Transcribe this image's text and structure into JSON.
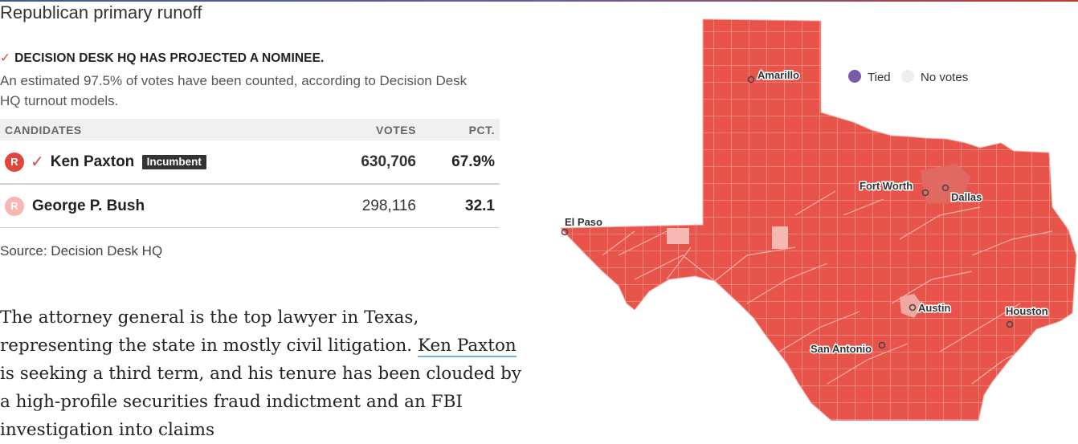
{
  "race": {
    "title": "Republican primary runoff",
    "projection": "DECISION DESK HQ HAS PROJECTED A NOMINEE.",
    "counted_text": "An estimated 97.5% of votes have been counted, according to Decision Desk HQ turnout models.",
    "pct_counted": 97.5
  },
  "table": {
    "headers": {
      "candidates": "CANDIDATES",
      "votes": "VOTES",
      "pct": "PCT."
    },
    "rows": [
      {
        "party": "R",
        "winner": true,
        "name": "Ken Paxton",
        "badge": "Incumbent",
        "votes": "630,706",
        "pct": "67.9%"
      },
      {
        "party": "R",
        "winner": false,
        "name": "George P. Bush",
        "badge": "",
        "votes": "298,116",
        "pct": "32.1"
      }
    ]
  },
  "source": "Source: Decision Desk HQ",
  "article": {
    "before_link": "The attorney general is the top lawyer in Texas, representing the state in mostly civil litigation. ",
    "link_text": "Ken Paxton",
    "after_link": " is seeking a third term, and his tenure has been clouded by a high-profile securities fraud indictment and an FBI investigation into claims"
  },
  "map": {
    "legend": [
      {
        "label": "Tied",
        "color": "#7b5aa6"
      },
      {
        "label": "No votes",
        "color": "#eeeeee"
      }
    ],
    "colors": {
      "paxton_strong": "#e8534a",
      "paxton_lead": "#f2a8a2",
      "county_border": "#f5b0aa"
    },
    "cities": [
      "Amarillo",
      "El Paso",
      "Fort Worth",
      "Dallas",
      "Austin",
      "Houston",
      "San Antonio"
    ]
  }
}
